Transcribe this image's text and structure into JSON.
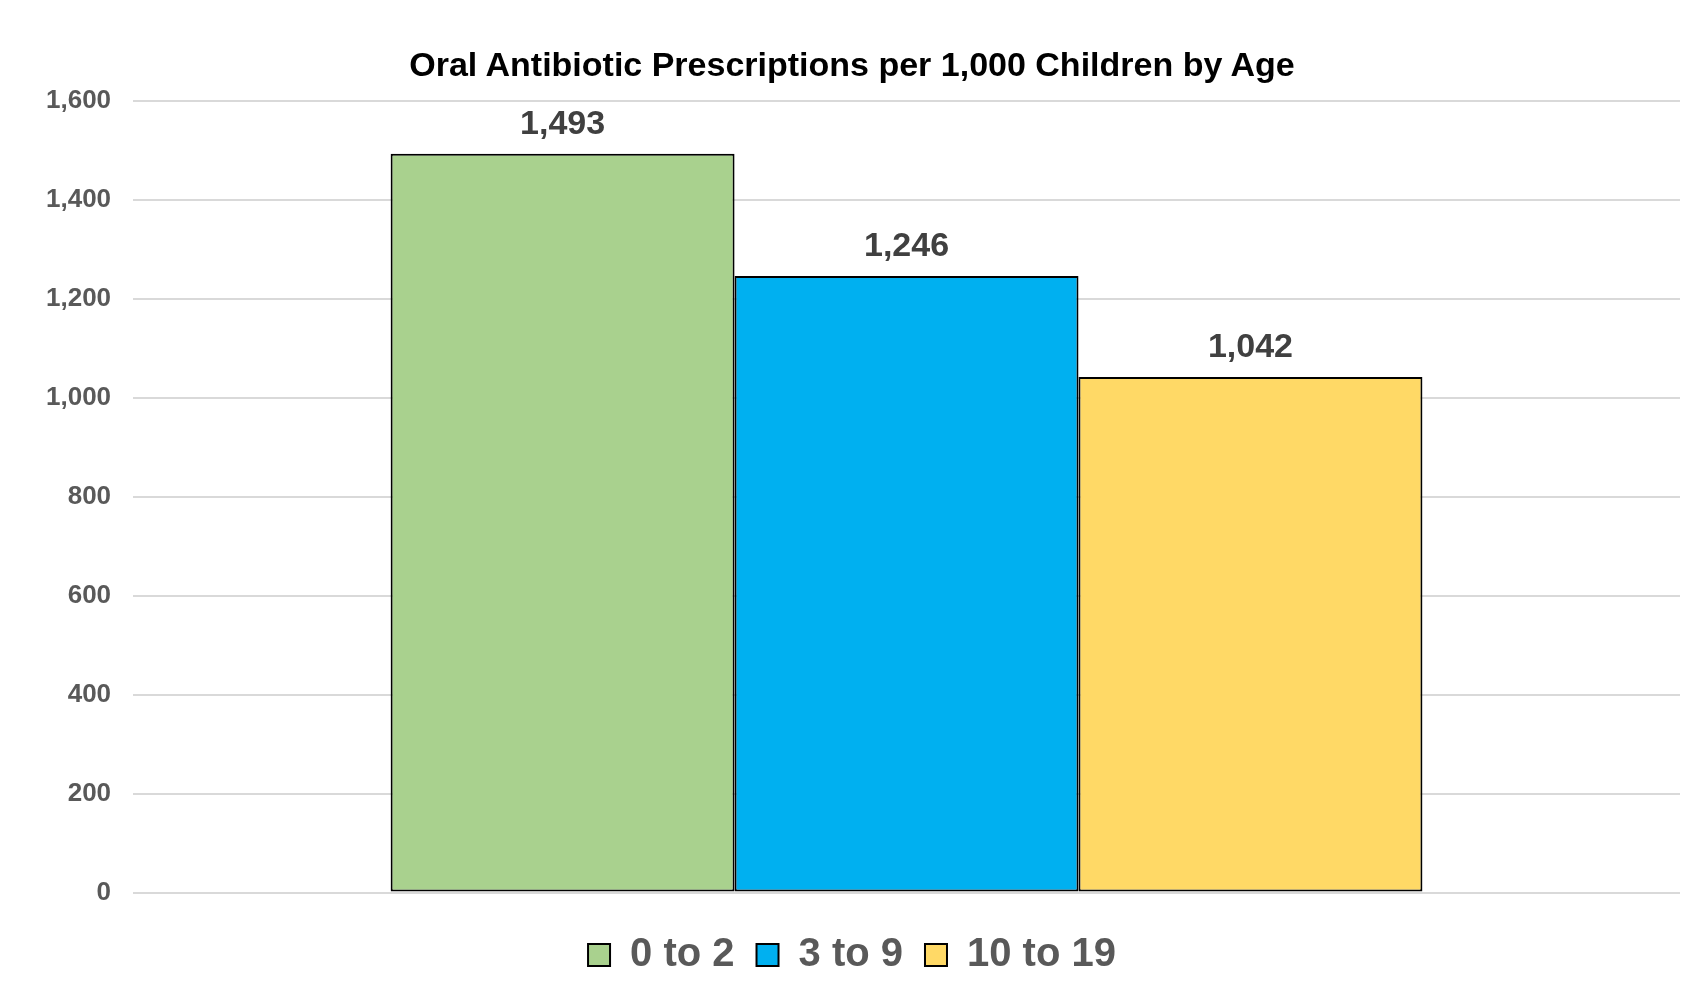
{
  "chart_data": {
    "type": "bar",
    "title": "Oral Antibiotic Prescriptions per 1,000 Children by Age",
    "categories": [
      null
    ],
    "series": [
      {
        "name": "0 to 2",
        "color": "#a9d18e",
        "values": [
          1493
        ],
        "value_labels": [
          "1,493"
        ]
      },
      {
        "name": "3 to 9",
        "color": "#00b0f0",
        "values": [
          1246
        ],
        "value_labels": [
          "1,246"
        ]
      },
      {
        "name": "10 to 19",
        "color": "#ffd966",
        "values": [
          1042
        ],
        "value_labels": [
          "1,042"
        ]
      }
    ],
    "ylim": [
      0,
      1600
    ],
    "yticks": [
      {
        "value": 0,
        "label": "0"
      },
      {
        "value": 200,
        "label": "200"
      },
      {
        "value": 400,
        "label": "400"
      },
      {
        "value": 600,
        "label": "600"
      },
      {
        "value": 800,
        "label": "800"
      },
      {
        "value": 1000,
        "label": "1,000"
      },
      {
        "value": 1200,
        "label": "1,200"
      },
      {
        "value": 1400,
        "label": "1,400"
      },
      {
        "value": 1600,
        "label": "1,600"
      }
    ],
    "grid": "y",
    "legend": "bottom"
  }
}
